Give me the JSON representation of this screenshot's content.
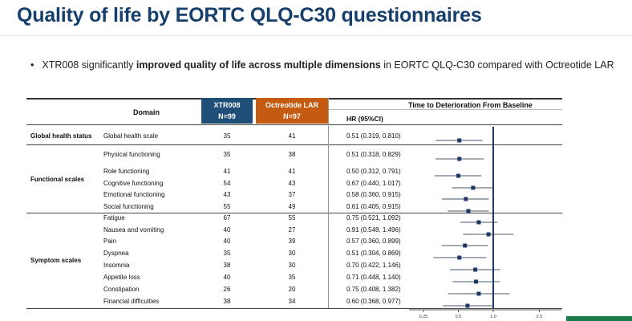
{
  "title": "Quality of life by EORTC QLQ-C30 questionnaires",
  "bullet": {
    "symbol": "•",
    "pre": "XTR008 significantly ",
    "bold": "improved quality of life across multiple dimensions",
    "post": " in EORTC QLQ-C30 compared with Octreotide LAR"
  },
  "table_header": {
    "domain": "Domain",
    "xtr_name": "XTR008",
    "xtr_n": "N=99",
    "oct_name": "Octreotide LAR",
    "oct_n": "N=97",
    "ttd": "Time to Deterioration From Baseline",
    "hr_label": "HR (95%CI)"
  },
  "groups": [
    {
      "label": "Global health status"
    },
    {
      "label": "Functional scales"
    },
    {
      "label": "Symptom scales"
    }
  ],
  "colors": {
    "xtr": "#1f4e79",
    "oct": "#c55a11",
    "title": "#173f6b",
    "marker": "#1f3864",
    "ref_line": "#1f3864"
  },
  "chart_data": {
    "type": "forest",
    "title": "Time to Deterioration From Baseline",
    "xlabel": "HR (95%CI)",
    "xscale": "log",
    "xlim": [
      0.25,
      3.0
    ],
    "xticks": [
      "0.25",
      "0.5",
      "1.0",
      "2.5"
    ],
    "reference_line": 1.0,
    "rows": [
      {
        "group": "Global health status",
        "domain": "Global health scale",
        "xtr008": "35",
        "octreotide": "41",
        "hr_text": "0.51 (0.319, 0.810)",
        "hr": 0.51,
        "lo": 0.319,
        "hi": 0.81
      },
      {
        "group": "Functional scales",
        "domain": "Physical functioning",
        "xtr008": "35",
        "octreotide": "38",
        "hr_text": "0.51 (0.318, 0.829)",
        "hr": 0.51,
        "lo": 0.318,
        "hi": 0.829
      },
      {
        "group": "Functional scales",
        "domain": "Role functioning",
        "xtr008": "41",
        "octreotide": "41",
        "hr_text": "0.50 (0.312, 0.791)",
        "hr": 0.5,
        "lo": 0.312,
        "hi": 0.791
      },
      {
        "group": "Functional scales",
        "domain": "Cognitive functioning",
        "xtr008": "54",
        "octreotide": "43",
        "hr_text": "0.67 (0.440, 1.017)",
        "hr": 0.67,
        "lo": 0.44,
        "hi": 1.017
      },
      {
        "group": "Functional scales",
        "domain": "Emotional functioning",
        "xtr008": "43",
        "octreotide": "37",
        "hr_text": "0.58 (0.360, 0.915)",
        "hr": 0.58,
        "lo": 0.36,
        "hi": 0.915
      },
      {
        "group": "Functional scales",
        "domain": "Social functioning",
        "xtr008": "55",
        "octreotide": "49",
        "hr_text": "0.61 (0.405, 0.915)",
        "hr": 0.61,
        "lo": 0.405,
        "hi": 0.915
      },
      {
        "group": "Symptom scales",
        "domain": "Fatigue",
        "xtr008": "67",
        "octreotide": "55",
        "hr_text": "0.75 (0.521, 1.092)",
        "hr": 0.75,
        "lo": 0.521,
        "hi": 1.092
      },
      {
        "group": "Symptom scales",
        "domain": "Nausea and vomiting",
        "xtr008": "40",
        "octreotide": "27",
        "hr_text": "0.91 (0.548, 1.496)",
        "hr": 0.91,
        "lo": 0.548,
        "hi": 1.496
      },
      {
        "group": "Symptom scales",
        "domain": "Pain",
        "xtr008": "40",
        "octreotide": "39",
        "hr_text": "0.57 (0.360, 0.899)",
        "hr": 0.57,
        "lo": 0.36,
        "hi": 0.899
      },
      {
        "group": "Symptom scales",
        "domain": "Dyspnea",
        "xtr008": "35",
        "octreotide": "30",
        "hr_text": "0.51 (0.304, 0.869)",
        "hr": 0.51,
        "lo": 0.304,
        "hi": 0.869
      },
      {
        "group": "Symptom scales",
        "domain": "Insomnia",
        "xtr008": "38",
        "octreotide": "30",
        "hr_text": "0.70 (0.422, 1.146)",
        "hr": 0.7,
        "lo": 0.422,
        "hi": 1.146
      },
      {
        "group": "Symptom scales",
        "domain": "Appetite loss",
        "xtr008": "40",
        "octreotide": "35",
        "hr_text": "0.71 (0.448, 1.140)",
        "hr": 0.71,
        "lo": 0.448,
        "hi": 1.14
      },
      {
        "group": "Symptom scales",
        "domain": "Constipation",
        "xtr008": "26",
        "octreotide": "20",
        "hr_text": "0.75 (0.408, 1.382)",
        "hr": 0.75,
        "lo": 0.408,
        "hi": 1.382
      },
      {
        "group": "Symptom scales",
        "domain": "Financial difficulties",
        "xtr008": "38",
        "octreotide": "34",
        "hr_text": "0.60 (0.368, 0.977)",
        "hr": 0.6,
        "lo": 0.368,
        "hi": 0.977
      }
    ]
  }
}
